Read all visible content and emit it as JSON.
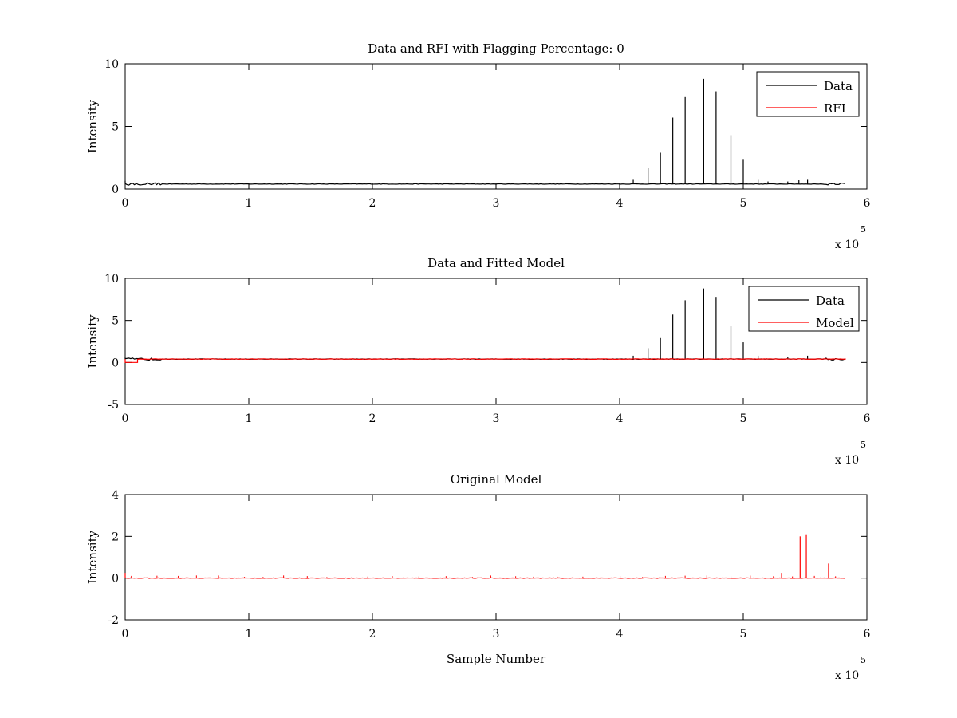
{
  "chart_data": [
    {
      "type": "line",
      "title": "Data and RFI with Flagging Percentage: 0",
      "xlabel": "",
      "ylabel": "Intensity",
      "xlim": [
        0,
        600000
      ],
      "ylim": [
        0,
        10
      ],
      "x_ticks": [
        "0",
        "1",
        "2",
        "3",
        "4",
        "5",
        "6"
      ],
      "y_ticks": [
        "0",
        "5",
        "10"
      ],
      "x_exponent_label": "x 10",
      "x_exponent_power": "5",
      "grid": false,
      "legend": {
        "position": "top-right",
        "entries": [
          "Data",
          "RFI"
        ]
      },
      "baseline": 0.4,
      "series": [
        {
          "name": "Data",
          "color": "#000000",
          "spikes": [
            {
              "x": 411000,
              "y": 0.8
            },
            {
              "x": 423000,
              "y": 1.7
            },
            {
              "x": 433000,
              "y": 2.9
            },
            {
              "x": 443000,
              "y": 5.7
            },
            {
              "x": 453000,
              "y": 7.4
            },
            {
              "x": 468000,
              "y": 8.8
            },
            {
              "x": 478000,
              "y": 7.8
            },
            {
              "x": 490000,
              "y": 4.3
            },
            {
              "x": 500000,
              "y": 2.4
            },
            {
              "x": 512000,
              "y": 0.8
            },
            {
              "x": 520000,
              "y": 0.6
            },
            {
              "x": 536000,
              "y": 0.6
            },
            {
              "x": 545000,
              "y": 0.7
            },
            {
              "x": 552000,
              "y": 0.8
            },
            {
              "x": 563000,
              "y": 0.5
            }
          ]
        },
        {
          "name": "RFI",
          "color": "#ff0000",
          "spikes": []
        }
      ]
    },
    {
      "type": "line",
      "title": "Data and Fitted Model",
      "xlabel": "",
      "ylabel": "Intensity",
      "xlim": [
        0,
        600000
      ],
      "ylim": [
        -5,
        10
      ],
      "x_ticks": [
        "0",
        "1",
        "2",
        "3",
        "4",
        "5",
        "6"
      ],
      "y_ticks": [
        "-5",
        "0",
        "5",
        "10"
      ],
      "x_exponent_label": "x 10",
      "x_exponent_power": "5",
      "grid": false,
      "legend": {
        "position": "top-right",
        "entries": [
          "Data",
          "Model"
        ]
      },
      "baseline": 0.4,
      "series": [
        {
          "name": "Data",
          "color": "#000000",
          "spikes": [
            {
              "x": 411000,
              "y": 0.8
            },
            {
              "x": 423000,
              "y": 1.7
            },
            {
              "x": 433000,
              "y": 2.9
            },
            {
              "x": 443000,
              "y": 5.7
            },
            {
              "x": 453000,
              "y": 7.4
            },
            {
              "x": 468000,
              "y": 8.8
            },
            {
              "x": 478000,
              "y": 7.8
            },
            {
              "x": 490000,
              "y": 4.3
            },
            {
              "x": 500000,
              "y": 2.4
            },
            {
              "x": 512000,
              "y": 0.8
            },
            {
              "x": 536000,
              "y": 0.6
            },
            {
              "x": 552000,
              "y": 0.8
            }
          ]
        },
        {
          "name": "Model",
          "color": "#ff0000",
          "spikes": [],
          "initial_dip": {
            "x_start": 0,
            "x_end": 10000,
            "y": 0.0
          }
        }
      ]
    },
    {
      "type": "line",
      "title": "Original Model",
      "xlabel": "Sample Number",
      "ylabel": "Intensity",
      "xlim": [
        0,
        600000
      ],
      "ylim": [
        -2,
        4
      ],
      "x_ticks": [
        "0",
        "1",
        "2",
        "3",
        "4",
        "5",
        "6"
      ],
      "y_ticks": [
        "-2",
        "0",
        "2",
        "4"
      ],
      "x_exponent_label": "x 10",
      "x_exponent_power": "5",
      "grid": false,
      "legend": null,
      "baseline": 0.0,
      "series": [
        {
          "name": "",
          "color": "#ff0000",
          "spikes": [
            {
              "x": 531000,
              "y": 0.25
            },
            {
              "x": 546000,
              "y": 2.0
            },
            {
              "x": 551000,
              "y": 2.1
            },
            {
              "x": 569000,
              "y": 0.7
            }
          ]
        }
      ]
    }
  ]
}
